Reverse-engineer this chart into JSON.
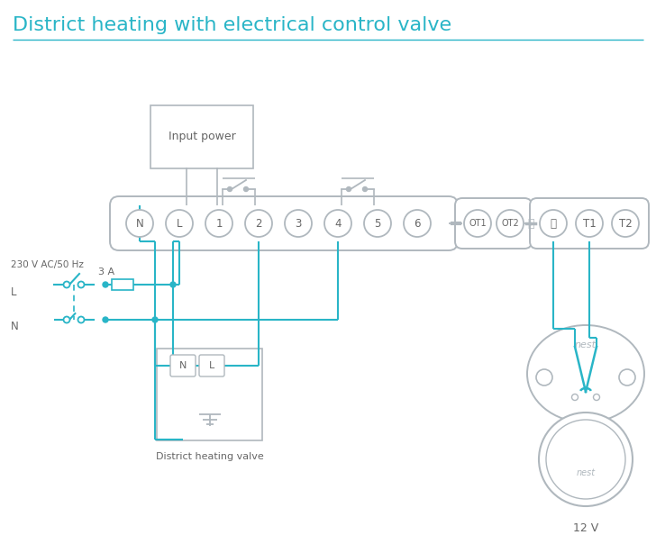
{
  "title": "District heating with electrical control valve",
  "title_color": "#29b5c7",
  "title_fontsize": 16,
  "bg_color": "#ffffff",
  "line_color": "#29b5c7",
  "gray_color": "#b0b8be",
  "text_color": "#666666",
  "terminal_labels": [
    "N",
    "L",
    "1",
    "2",
    "3",
    "4",
    "5",
    "6"
  ],
  "ot_labels": [
    "OT1",
    "OT2"
  ],
  "right_labels": [
    "T1",
    "T2"
  ],
  "ground_label": "⏚",
  "left_label_L": "L",
  "left_label_N": "N",
  "left_label_power": "230 V AC/50 Hz",
  "fuse_label": "3 A",
  "input_power_label": "Input power",
  "dhv_label": "District heating valve",
  "nest_label": "nest",
  "twelve_v_label": "12 V"
}
